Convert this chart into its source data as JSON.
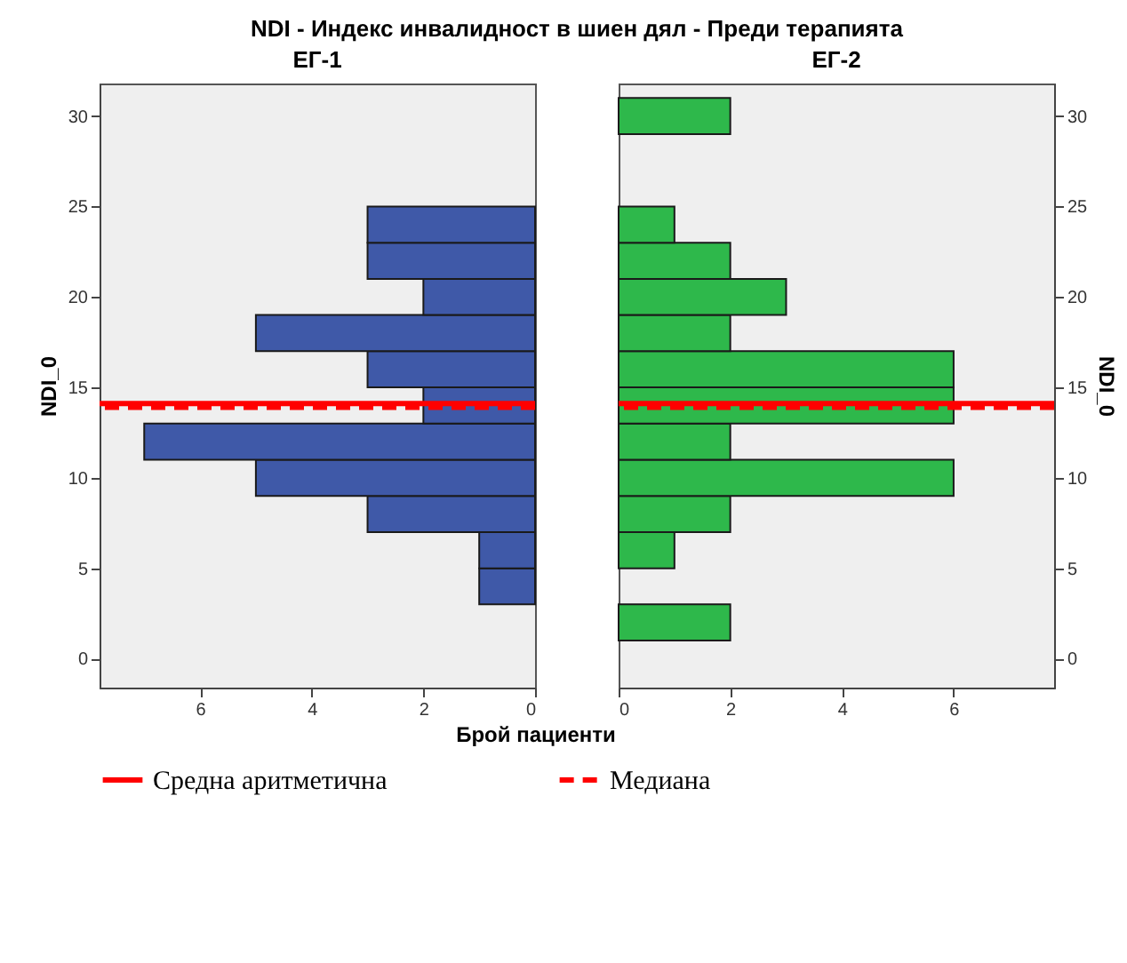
{
  "chart_data": [
    {
      "type": "histogram",
      "title": "NDI  -  Индекс инвалидност в шиен дял  -  Преди терапията",
      "subtitle": "ЕГ-1",
      "xlabel": "Брой пациенти",
      "ylabel": "NDI_0",
      "orientation": "horizontal",
      "color": "#3f59a8",
      "bins": [
        1,
        3,
        5,
        7,
        9,
        11,
        13,
        15,
        17,
        19,
        21,
        23,
        25,
        27,
        29,
        31
      ],
      "values": [
        0,
        1,
        1,
        3,
        5,
        7,
        2,
        3,
        5,
        2,
        3,
        3,
        0,
        0,
        0
      ],
      "xlim": [
        7.8,
        0
      ],
      "xticks": [
        6,
        4,
        2,
        0
      ],
      "ylim": [
        -1.6,
        31.8
      ],
      "yticks": [
        0,
        5,
        10,
        15,
        20,
        25,
        30
      ],
      "grid": false,
      "legend": "bottom",
      "ref_lines": [
        {
          "axis": "y",
          "value": 14.1,
          "label": "Средна аритметична",
          "color": "#ff0000",
          "line_style": "solid"
        },
        {
          "axis": "y",
          "value": 13.9,
          "label": "Медиана",
          "color": "#ff0000",
          "line_style": "dashed"
        }
      ]
    },
    {
      "type": "histogram",
      "subtitle": "ЕГ-2",
      "ylabel": "NDI_0",
      "orientation": "horizontal",
      "color": "#2eb84b",
      "bins": [
        1,
        3,
        5,
        7,
        9,
        11,
        13,
        15,
        17,
        19,
        21,
        23,
        25,
        27,
        29,
        31
      ],
      "values": [
        2,
        0,
        1,
        2,
        6,
        2,
        6,
        6,
        2,
        3,
        2,
        1,
        0,
        0,
        2
      ],
      "xlim": [
        0,
        7.8
      ],
      "xticks": [
        0,
        2,
        4,
        6
      ],
      "ylim": [
        -1.6,
        31.8
      ],
      "yticks": [
        0,
        5,
        10,
        15,
        20,
        25,
        30
      ],
      "grid": false,
      "ref_lines": [
        {
          "axis": "y",
          "value": 14.1,
          "color": "#ff0000",
          "line_style": "solid"
        },
        {
          "axis": "y",
          "value": 13.9,
          "color": "#ff0000",
          "line_style": "dashed"
        }
      ]
    }
  ]
}
